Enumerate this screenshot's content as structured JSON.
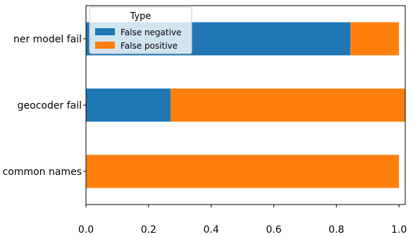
{
  "chart_data": {
    "type": "bar",
    "orientation": "horizontal",
    "stacked": true,
    "categories": [
      "common names",
      "geocoder fail",
      "ner model fail"
    ],
    "series": [
      {
        "name": "False negative",
        "values": [
          0.0,
          0.27,
          0.845
        ],
        "color": "#1f77b4"
      },
      {
        "name": "False positive",
        "values": [
          1.0,
          0.75,
          0.155
        ],
        "color": "#ff7f0e"
      }
    ],
    "title": "",
    "xlabel": "",
    "ylabel": "",
    "xlim": [
      0,
      1.02
    ],
    "xticks": [
      "0.0",
      "0.2",
      "0.4",
      "0.6",
      "0.8",
      "1.0"
    ],
    "grid": false,
    "legend": {
      "title": "Type",
      "placement": "top-left"
    }
  }
}
